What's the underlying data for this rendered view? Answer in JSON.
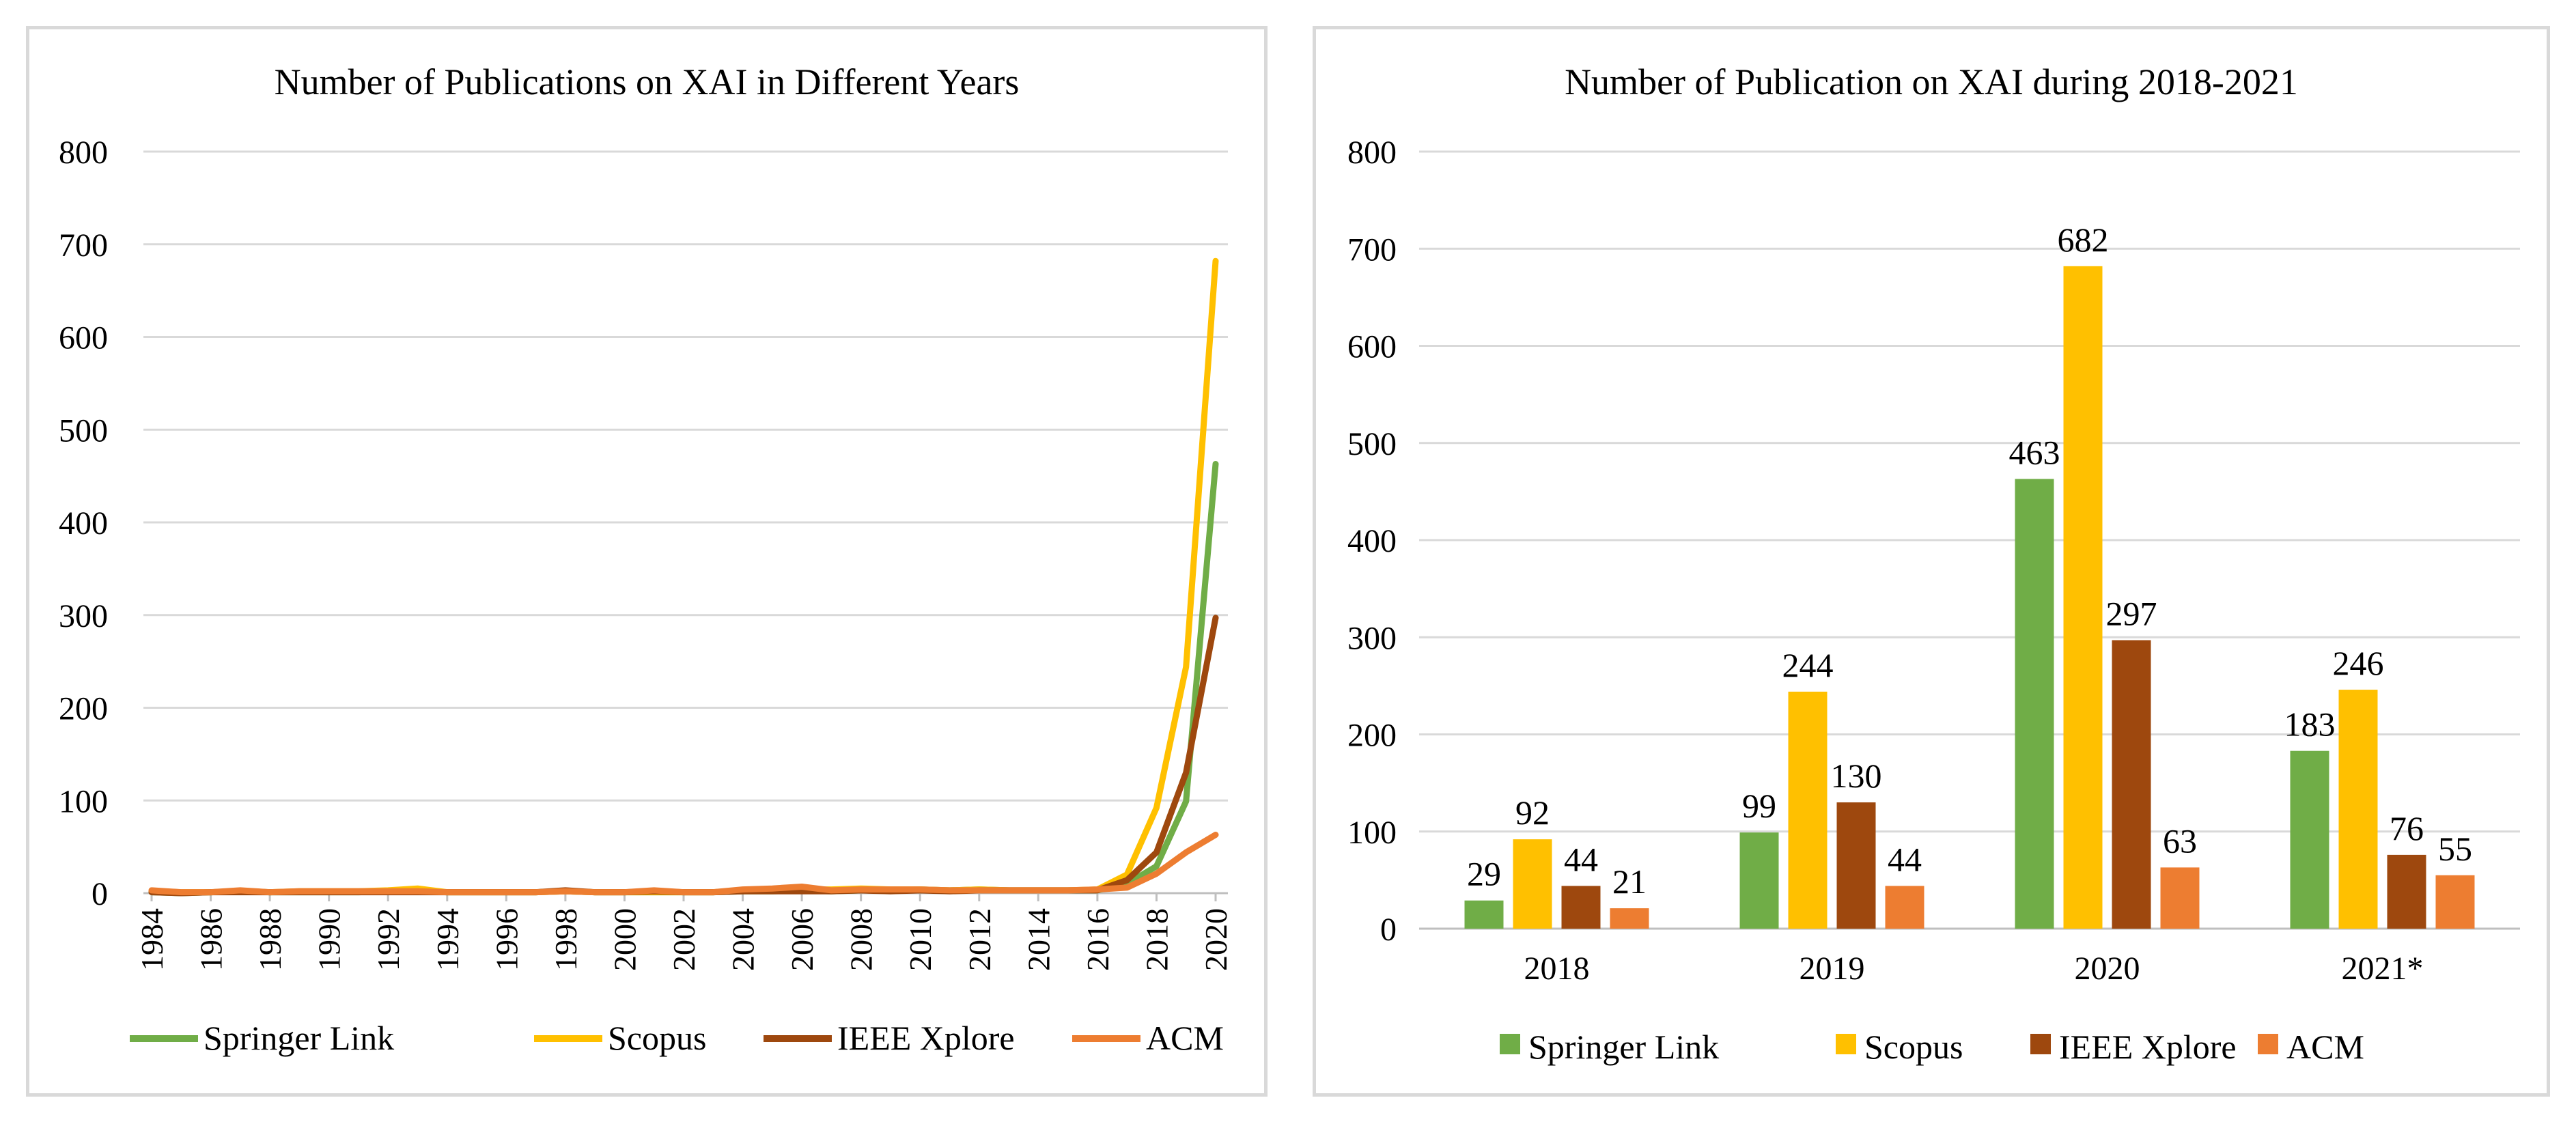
{
  "chart_data": [
    {
      "type": "line",
      "title": "Number of Publications on XAI in Different Years",
      "xlabel": "",
      "ylabel": "",
      "ylim": [
        0,
        800
      ],
      "yticks": [
        0,
        100,
        200,
        300,
        400,
        500,
        600,
        700,
        800
      ],
      "x": [
        1984,
        1985,
        1986,
        1987,
        1988,
        1989,
        1990,
        1991,
        1992,
        1993,
        1994,
        1995,
        1996,
        1997,
        1998,
        1999,
        2000,
        2001,
        2002,
        2003,
        2004,
        2005,
        2006,
        2007,
        2008,
        2009,
        2010,
        2011,
        2012,
        2013,
        2014,
        2015,
        2016,
        2017,
        2018,
        2019,
        2020
      ],
      "xticklabels": [
        "1984",
        "1986",
        "1988",
        "1990",
        "1992",
        "1994",
        "1996",
        "1998",
        "2000",
        "2002",
        "2004",
        "2006",
        "2008",
        "2010",
        "2012",
        "2014",
        "2016",
        "2018",
        "2020"
      ],
      "grid": true,
      "legend": "bottom",
      "series": [
        {
          "name": "Springer Link",
          "color": "#70ad47",
          "values": [
            1,
            0,
            1,
            2,
            1,
            1,
            1,
            1,
            2,
            2,
            1,
            1,
            1,
            1,
            2,
            1,
            1,
            1,
            1,
            1,
            2,
            2,
            3,
            2,
            3,
            3,
            4,
            3,
            4,
            3,
            3,
            3,
            3,
            10,
            29,
            99,
            463
          ]
        },
        {
          "name": "Scopus",
          "color": "#ffc000",
          "values": [
            2,
            1,
            1,
            2,
            1,
            2,
            2,
            2,
            3,
            5,
            1,
            1,
            1,
            1,
            2,
            1,
            1,
            1,
            1,
            1,
            3,
            3,
            4,
            4,
            5,
            4,
            4,
            3,
            4,
            3,
            3,
            3,
            4,
            20,
            92,
            244,
            682
          ]
        },
        {
          "name": "IEEE Xplore",
          "color": "#9e480e",
          "values": [
            1,
            0,
            1,
            1,
            1,
            1,
            1,
            1,
            1,
            1,
            1,
            1,
            1,
            1,
            3,
            1,
            1,
            2,
            1,
            1,
            2,
            2,
            2,
            2,
            3,
            2,
            3,
            2,
            3,
            3,
            3,
            3,
            3,
            14,
            44,
            130,
            297
          ]
        },
        {
          "name": "ACM",
          "color": "#ed7d31",
          "values": [
            3,
            1,
            1,
            3,
            1,
            2,
            2,
            2,
            2,
            2,
            1,
            1,
            1,
            1,
            2,
            1,
            1,
            3,
            1,
            1,
            4,
            5,
            7,
            3,
            4,
            4,
            4,
            3,
            3,
            3,
            3,
            3,
            4,
            6,
            21,
            44,
            63
          ]
        }
      ]
    },
    {
      "type": "bar",
      "title": "Number of Publication on XAI during 2018-2021",
      "xlabel": "",
      "ylabel": "",
      "ylim": [
        0,
        800
      ],
      "yticks": [
        0,
        100,
        200,
        300,
        400,
        500,
        600,
        700,
        800
      ],
      "categories": [
        "2018",
        "2019",
        "2020",
        "2021*"
      ],
      "grid": true,
      "legend": "bottom",
      "series": [
        {
          "name": "Springer Link",
          "color": "#70ad47",
          "values": [
            29,
            99,
            463,
            183
          ]
        },
        {
          "name": "Scopus",
          "color": "#ffc000",
          "values": [
            92,
            244,
            682,
            246
          ]
        },
        {
          "name": "IEEE Xplore",
          "color": "#9e480e",
          "values": [
            44,
            130,
            297,
            76
          ]
        },
        {
          "name": "ACM",
          "color": "#ed7d31",
          "values": [
            21,
            44,
            63,
            55
          ]
        }
      ]
    }
  ]
}
